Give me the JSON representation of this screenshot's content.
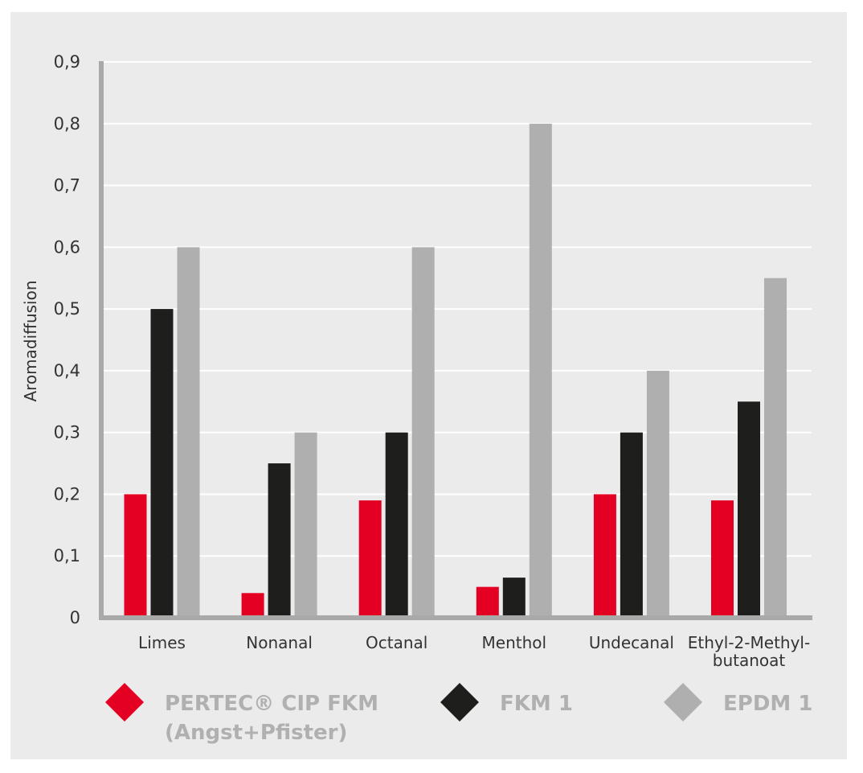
{
  "chart_data": {
    "type": "bar",
    "title": "",
    "xlabel": "",
    "ylabel": "Aromadiffusion",
    "ylim": [
      0,
      0.9
    ],
    "yticks": [
      "0",
      "0,1",
      "0,2",
      "0,3",
      "0,4",
      "0,5",
      "0,6",
      "0,7",
      "0,8",
      "0,9"
    ],
    "grid": true,
    "legend_position": "bottom",
    "categories": [
      [
        "Limes"
      ],
      [
        "Nonanal"
      ],
      [
        "Octanal"
      ],
      [
        "Menthol"
      ],
      [
        "Undecanal"
      ],
      [
        "Ethyl-2-Methyl-",
        "butanoat"
      ]
    ],
    "series": [
      {
        "name": [
          "PERTEC® CIP FKM",
          "(Angst+Pfister)"
        ],
        "color": "#e30023",
        "values": [
          0.2,
          0.04,
          0.19,
          0.05,
          0.2,
          0.19
        ]
      },
      {
        "name": [
          "FKM 1"
        ],
        "color": "#1e1e1c",
        "values": [
          0.5,
          0.25,
          0.3,
          0.065,
          0.3,
          0.35
        ]
      },
      {
        "name": [
          "EPDM 1"
        ],
        "color": "#b0afb0",
        "values": [
          0.6,
          0.3,
          0.6,
          0.8,
          0.4,
          0.55
        ]
      }
    ]
  }
}
